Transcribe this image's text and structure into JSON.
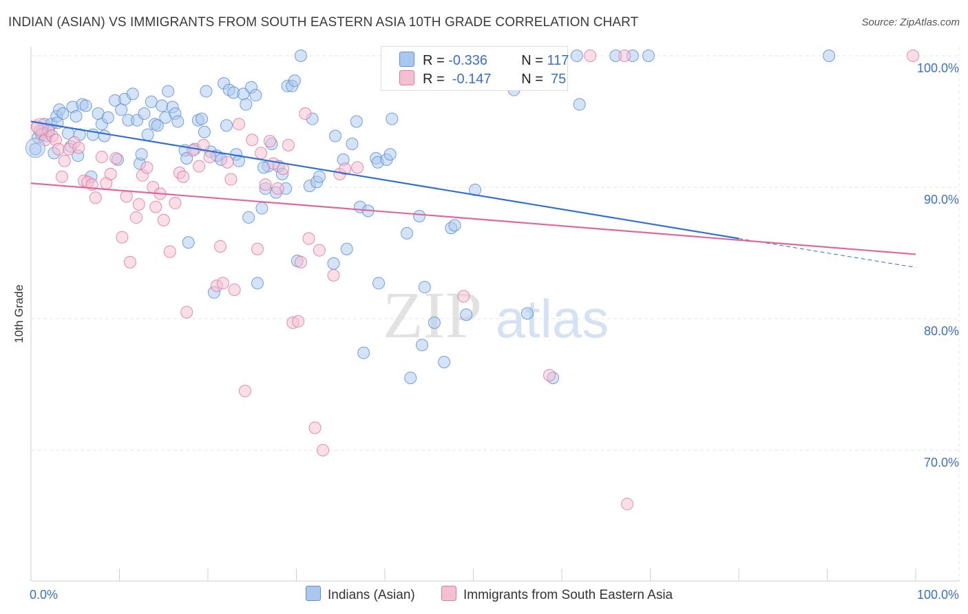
{
  "title": "INDIAN (ASIAN) VS IMMIGRANTS FROM SOUTH EASTERN ASIA 10TH GRADE CORRELATION CHART",
  "source": "Source: ZipAtlas.com",
  "watermark": {
    "part1": "ZIP",
    "part2": "atlas"
  },
  "legend_stats": [
    {
      "r_label": "R = ",
      "r_value": "-0.336",
      "n_label": "N = ",
      "n_value": "117",
      "color": "#8fb6e8"
    },
    {
      "r_label": "R = ",
      "r_value": " -0.147",
      "n_label": "N = ",
      "n_value": " 75",
      "color": "#f2a9c1"
    }
  ],
  "chart_data": {
    "type": "scatter",
    "ylabel": "10th Grade",
    "xlabel": "",
    "xlim": [
      0,
      100
    ],
    "ylim": [
      60,
      100
    ],
    "x_tick_labels": [
      "0.0%",
      "100.0%"
    ],
    "y_ticks": [
      70,
      80,
      90,
      100
    ],
    "y_tick_labels": [
      "70.0%",
      "80.0%",
      "90.0%",
      "100.0%"
    ],
    "grid": true,
    "legend": "bottom-center",
    "series": [
      {
        "name": "Indians (Asian)",
        "color": "#5b8fd6",
        "fill": "#aac8ef",
        "trend": {
          "x": [
            0,
            80
          ],
          "y": [
            95.0,
            86.1
          ],
          "dashed_to": [
            100,
            83.9
          ]
        },
        "points": [
          [
            0.5,
            92.9
          ],
          [
            0.8,
            93.8
          ],
          [
            1.2,
            94.2
          ],
          [
            1.5,
            94.8
          ],
          [
            1.8,
            93.9
          ],
          [
            2.0,
            94.2
          ],
          [
            2.3,
            94.8
          ],
          [
            2.6,
            92.6
          ],
          [
            2.9,
            95.4
          ],
          [
            3.2,
            95.9
          ],
          [
            3.6,
            95.6
          ],
          [
            4.2,
            94.1
          ],
          [
            4.5,
            93.1
          ],
          [
            4.7,
            96.1
          ],
          [
            5.1,
            95.4
          ],
          [
            5.5,
            94.0
          ],
          [
            5.8,
            96.3
          ],
          [
            6.2,
            96.2
          ],
          [
            6.8,
            90.8
          ],
          [
            7.0,
            94.0
          ],
          [
            7.6,
            95.6
          ],
          [
            8.0,
            94.8
          ],
          [
            8.3,
            93.9
          ],
          [
            8.7,
            95.3
          ],
          [
            9.5,
            96.6
          ],
          [
            9.8,
            92.1
          ],
          [
            10.2,
            95.9
          ],
          [
            10.6,
            96.7
          ],
          [
            11.0,
            95.1
          ],
          [
            11.5,
            97.1
          ],
          [
            12.0,
            95.1
          ],
          [
            12.3,
            91.8
          ],
          [
            12.8,
            95.6
          ],
          [
            13.2,
            94.0
          ],
          [
            13.6,
            96.5
          ],
          [
            14.0,
            94.8
          ],
          [
            14.3,
            94.7
          ],
          [
            14.8,
            96.2
          ],
          [
            15.2,
            95.3
          ],
          [
            15.5,
            97.3
          ],
          [
            16.0,
            96.1
          ],
          [
            16.3,
            95.6
          ],
          [
            16.6,
            95.0
          ],
          [
            17.4,
            92.8
          ],
          [
            17.6,
            92.2
          ],
          [
            17.8,
            85.8
          ],
          [
            18.5,
            92.9
          ],
          [
            18.9,
            95.1
          ],
          [
            19.3,
            95.2
          ],
          [
            19.6,
            94.2
          ],
          [
            19.8,
            97.3
          ],
          [
            20.3,
            92.7
          ],
          [
            20.7,
            82.0
          ],
          [
            21.0,
            92.4
          ],
          [
            21.5,
            92.1
          ],
          [
            21.8,
            97.9
          ],
          [
            22.1,
            94.7
          ],
          [
            22.4,
            97.4
          ],
          [
            22.9,
            97.2
          ],
          [
            23.2,
            92.5
          ],
          [
            23.5,
            92.0
          ],
          [
            24.0,
            97.1
          ],
          [
            24.3,
            96.3
          ],
          [
            24.6,
            87.7
          ],
          [
            24.9,
            97.6
          ],
          [
            25.4,
            97.0
          ],
          [
            25.6,
            82.7
          ],
          [
            26.1,
            88.4
          ],
          [
            26.5,
            89.9
          ],
          [
            26.8,
            91.6
          ],
          [
            27.2,
            93.3
          ],
          [
            27.7,
            89.6
          ],
          [
            28.0,
            91.6
          ],
          [
            28.4,
            91.0
          ],
          [
            28.8,
            89.9
          ],
          [
            29.0,
            97.7
          ],
          [
            29.5,
            97.7
          ],
          [
            29.8,
            98.1
          ],
          [
            30.1,
            84.4
          ],
          [
            30.5,
            100.0
          ],
          [
            31.5,
            90.1
          ],
          [
            31.8,
            95.2
          ],
          [
            32.3,
            90.4
          ],
          [
            32.6,
            90.8
          ],
          [
            34.2,
            84.2
          ],
          [
            34.4,
            93.9
          ],
          [
            35.3,
            92.1
          ],
          [
            35.7,
            85.3
          ],
          [
            36.3,
            93.3
          ],
          [
            36.8,
            95.0
          ],
          [
            37.2,
            88.5
          ],
          [
            37.6,
            77.4
          ],
          [
            38.1,
            88.2
          ],
          [
            39.0,
            92.2
          ],
          [
            39.2,
            91.9
          ],
          [
            39.3,
            82.7
          ],
          [
            40.2,
            92.1
          ],
          [
            40.6,
            92.5
          ],
          [
            40.8,
            95.2
          ],
          [
            42.5,
            86.5
          ],
          [
            42.9,
            75.5
          ],
          [
            43.9,
            87.8
          ],
          [
            44.2,
            78.0
          ],
          [
            44.5,
            82.4
          ],
          [
            45.6,
            79.7
          ],
          [
            46.0,
            100.0
          ],
          [
            46.2,
            100.0
          ],
          [
            46.7,
            76.7
          ],
          [
            47.5,
            86.9
          ],
          [
            47.9,
            87.1
          ],
          [
            49.2,
            80.3
          ],
          [
            50.2,
            89.8
          ],
          [
            54.3,
            100.0
          ],
          [
            54.6,
            97.4
          ],
          [
            56.1,
            80.4
          ],
          [
            59.0,
            75.5
          ],
          [
            61.7,
            100.0
          ],
          [
            62.0,
            96.3
          ],
          [
            66.1,
            100.0
          ],
          [
            68.0,
            100.0
          ],
          [
            69.8,
            100.0
          ],
          [
            90.2,
            100.0
          ],
          [
            1.0,
            94.3
          ],
          [
            3.0,
            94.9
          ],
          [
            5.3,
            92.4
          ],
          [
            12.5,
            92.5
          ],
          [
            26.3,
            91.5
          ]
        ]
      },
      {
        "name": "Immigrants from South Eastern Asia",
        "color": "#e0789f",
        "fill": "#f5bfd2",
        "trend": {
          "x": [
            0,
            100
          ],
          "y": [
            90.3,
            84.9
          ]
        },
        "points": [
          [
            0.7,
            94.6
          ],
          [
            1.2,
            94.0
          ],
          [
            1.6,
            93.6
          ],
          [
            2.0,
            94.3
          ],
          [
            2.4,
            93.9
          ],
          [
            2.8,
            93.6
          ],
          [
            3.1,
            92.9
          ],
          [
            3.5,
            90.8
          ],
          [
            3.8,
            92.0
          ],
          [
            4.3,
            92.9
          ],
          [
            4.9,
            93.4
          ],
          [
            5.4,
            93.0
          ],
          [
            6.0,
            90.5
          ],
          [
            6.4,
            90.4
          ],
          [
            6.9,
            90.2
          ],
          [
            7.3,
            89.2
          ],
          [
            8.0,
            92.3
          ],
          [
            8.5,
            90.3
          ],
          [
            9.0,
            91.0
          ],
          [
            9.6,
            92.2
          ],
          [
            10.3,
            86.2
          ],
          [
            10.8,
            89.3
          ],
          [
            11.2,
            84.3
          ],
          [
            11.9,
            87.7
          ],
          [
            12.2,
            88.7
          ],
          [
            12.6,
            90.9
          ],
          [
            13.1,
            91.5
          ],
          [
            13.8,
            90.0
          ],
          [
            14.1,
            88.5
          ],
          [
            14.6,
            89.5
          ],
          [
            15.0,
            87.5
          ],
          [
            15.7,
            85.1
          ],
          [
            16.3,
            88.8
          ],
          [
            16.8,
            91.1
          ],
          [
            17.2,
            90.8
          ],
          [
            17.6,
            80.5
          ],
          [
            18.3,
            92.8
          ],
          [
            19.0,
            91.6
          ],
          [
            19.5,
            93.2
          ],
          [
            20.2,
            92.3
          ],
          [
            21.0,
            82.5
          ],
          [
            21.4,
            85.5
          ],
          [
            21.7,
            82.7
          ],
          [
            22.2,
            91.9
          ],
          [
            22.6,
            90.6
          ],
          [
            23.0,
            82.2
          ],
          [
            23.5,
            94.8
          ],
          [
            24.2,
            74.5
          ],
          [
            25.0,
            93.6
          ],
          [
            25.6,
            85.3
          ],
          [
            26.0,
            92.6
          ],
          [
            26.5,
            90.2
          ],
          [
            27.0,
            93.5
          ],
          [
            27.4,
            91.8
          ],
          [
            27.9,
            89.9
          ],
          [
            28.5,
            91.4
          ],
          [
            29.1,
            93.2
          ],
          [
            29.6,
            79.7
          ],
          [
            30.2,
            79.8
          ],
          [
            30.5,
            84.3
          ],
          [
            31.0,
            95.6
          ],
          [
            31.4,
            86.1
          ],
          [
            32.1,
            71.7
          ],
          [
            32.6,
            85.2
          ],
          [
            33.0,
            70.0
          ],
          [
            34.2,
            83.3
          ],
          [
            34.9,
            91.0
          ],
          [
            35.5,
            91.4
          ],
          [
            36.9,
            91.5
          ],
          [
            48.9,
            81.7
          ],
          [
            58.6,
            75.7
          ],
          [
            63.2,
            100.0
          ],
          [
            67.1,
            100.0
          ],
          [
            67.4,
            65.9
          ],
          [
            99.7,
            100.0
          ]
        ]
      }
    ]
  }
}
